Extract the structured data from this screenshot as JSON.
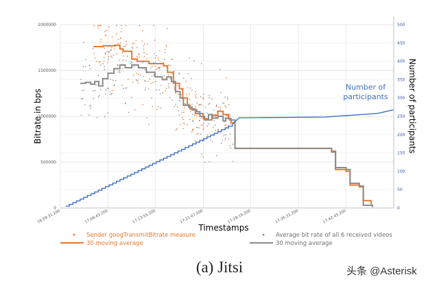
{
  "caption": "(a) Jitsi",
  "watermark": "头条 @Asterisk",
  "colors": {
    "orange": "#e8782e",
    "gray": "#8a8a8a",
    "blue": "#3f72c4",
    "axis_right": "#2a5aa8"
  },
  "chart_data": {
    "type": "scatter",
    "xlabel": "Timestamps",
    "ylabel": "Bitrate in bps",
    "y2label": "Number of participants",
    "ylim": [
      0,
      2000000
    ],
    "y2lim": [
      0,
      500
    ],
    "y_ticks": [
      0,
      500000,
      1000000,
      1500000,
      2000000
    ],
    "y_tick_labels": [
      "0",
      "500000",
      "1000000",
      "1500000",
      "2000000"
    ],
    "y2_ticks": [
      0,
      50,
      100,
      150,
      200,
      250,
      300,
      350,
      400,
      450,
      500
    ],
    "x_tick_labels": [
      "16:59:31.200",
      "17:06:43.200",
      "17:13:55.200",
      "17:21:07.200",
      "17:28:19.200",
      "17:35:31.200",
      "17:42:43.200"
    ],
    "x_range_minutes": [
      0,
      50.4
    ],
    "grid": true,
    "annotation": "Number of\nparticipants",
    "legend": [
      {
        "label": "Sender googTransmitBitrate measure",
        "kind": "dot",
        "color": "#e8782e"
      },
      {
        "label": "Average bit rate of all 6 received videos",
        "kind": "dot",
        "color": "#8a8a8a"
      },
      {
        "label": "30 moving average",
        "kind": "line",
        "color": "#e8782e"
      },
      {
        "label": "30 moving average",
        "kind": "line",
        "color": "#8a8a8a"
      }
    ],
    "series": [
      {
        "name": "30 moving average",
        "axis": "left",
        "color": "#e8782e",
        "x": [
          5.0,
          6.5,
          8.2,
          9.0,
          9.5,
          10.8,
          11.6,
          12.6,
          13.4,
          14.4,
          15.6,
          16.2,
          17.1,
          18.0,
          18.5,
          19.2,
          19.6,
          20.4,
          21.2,
          21.6,
          22.4,
          22.9,
          23.8,
          24.6,
          25.4,
          25.8,
          26.4,
          41.0,
          41.6,
          43.2,
          43.8,
          45.2,
          45.8,
          47.0
        ],
        "y": [
          1760000,
          1770000,
          1775000,
          1735000,
          1710000,
          1625000,
          1600000,
          1600000,
          1575000,
          1575000,
          1550000,
          1480000,
          1360000,
          1300000,
          1200000,
          1120000,
          1080000,
          1030000,
          1030000,
          975000,
          960000,
          1010000,
          1055000,
          1020000,
          975000,
          930000,
          650000,
          620000,
          420000,
          400000,
          250000,
          230000,
          80000,
          40000
        ]
      },
      {
        "name": "30 moving average",
        "axis": "left",
        "color": "#8a8a8a",
        "x": [
          3.0,
          3.8,
          4.6,
          5.2,
          5.8,
          6.4,
          7.2,
          8.1,
          9.0,
          9.8,
          10.8,
          11.8,
          13.0,
          14.3,
          15.4,
          16.1,
          16.8,
          17.4,
          18.1,
          18.6,
          19.4,
          19.9,
          20.6,
          21.1,
          21.8,
          22.4,
          23.0,
          23.8,
          24.6,
          25.0,
          25.6,
          26.4,
          41.0,
          41.6,
          43.2,
          43.8,
          45.2,
          45.8,
          47.2
        ],
        "y": [
          1360000,
          1370000,
          1350000,
          1380000,
          1330000,
          1410000,
          1470000,
          1520000,
          1560000,
          1530000,
          1560000,
          1530000,
          1480000,
          1430000,
          1400000,
          1430000,
          1380000,
          1270000,
          1200000,
          1120000,
          1100000,
          1070000,
          1050000,
          1000000,
          960000,
          1020000,
          980000,
          1000000,
          950000,
          980000,
          960000,
          650000,
          610000,
          440000,
          420000,
          270000,
          240000,
          30000,
          10000
        ]
      },
      {
        "name": "Number of participants",
        "axis": "right",
        "color": "#3f72c4",
        "steps": {
          "x_start": 0.8,
          "x_end": 26.0,
          "y_start": 5,
          "y_end": 228,
          "count": 46
        },
        "tail_x": [
          26.0,
          27.0,
          40.0,
          44.0,
          48.0,
          50.4
        ],
        "tail_y": [
          228,
          246,
          248,
          253,
          258,
          268
        ]
      }
    ]
  }
}
